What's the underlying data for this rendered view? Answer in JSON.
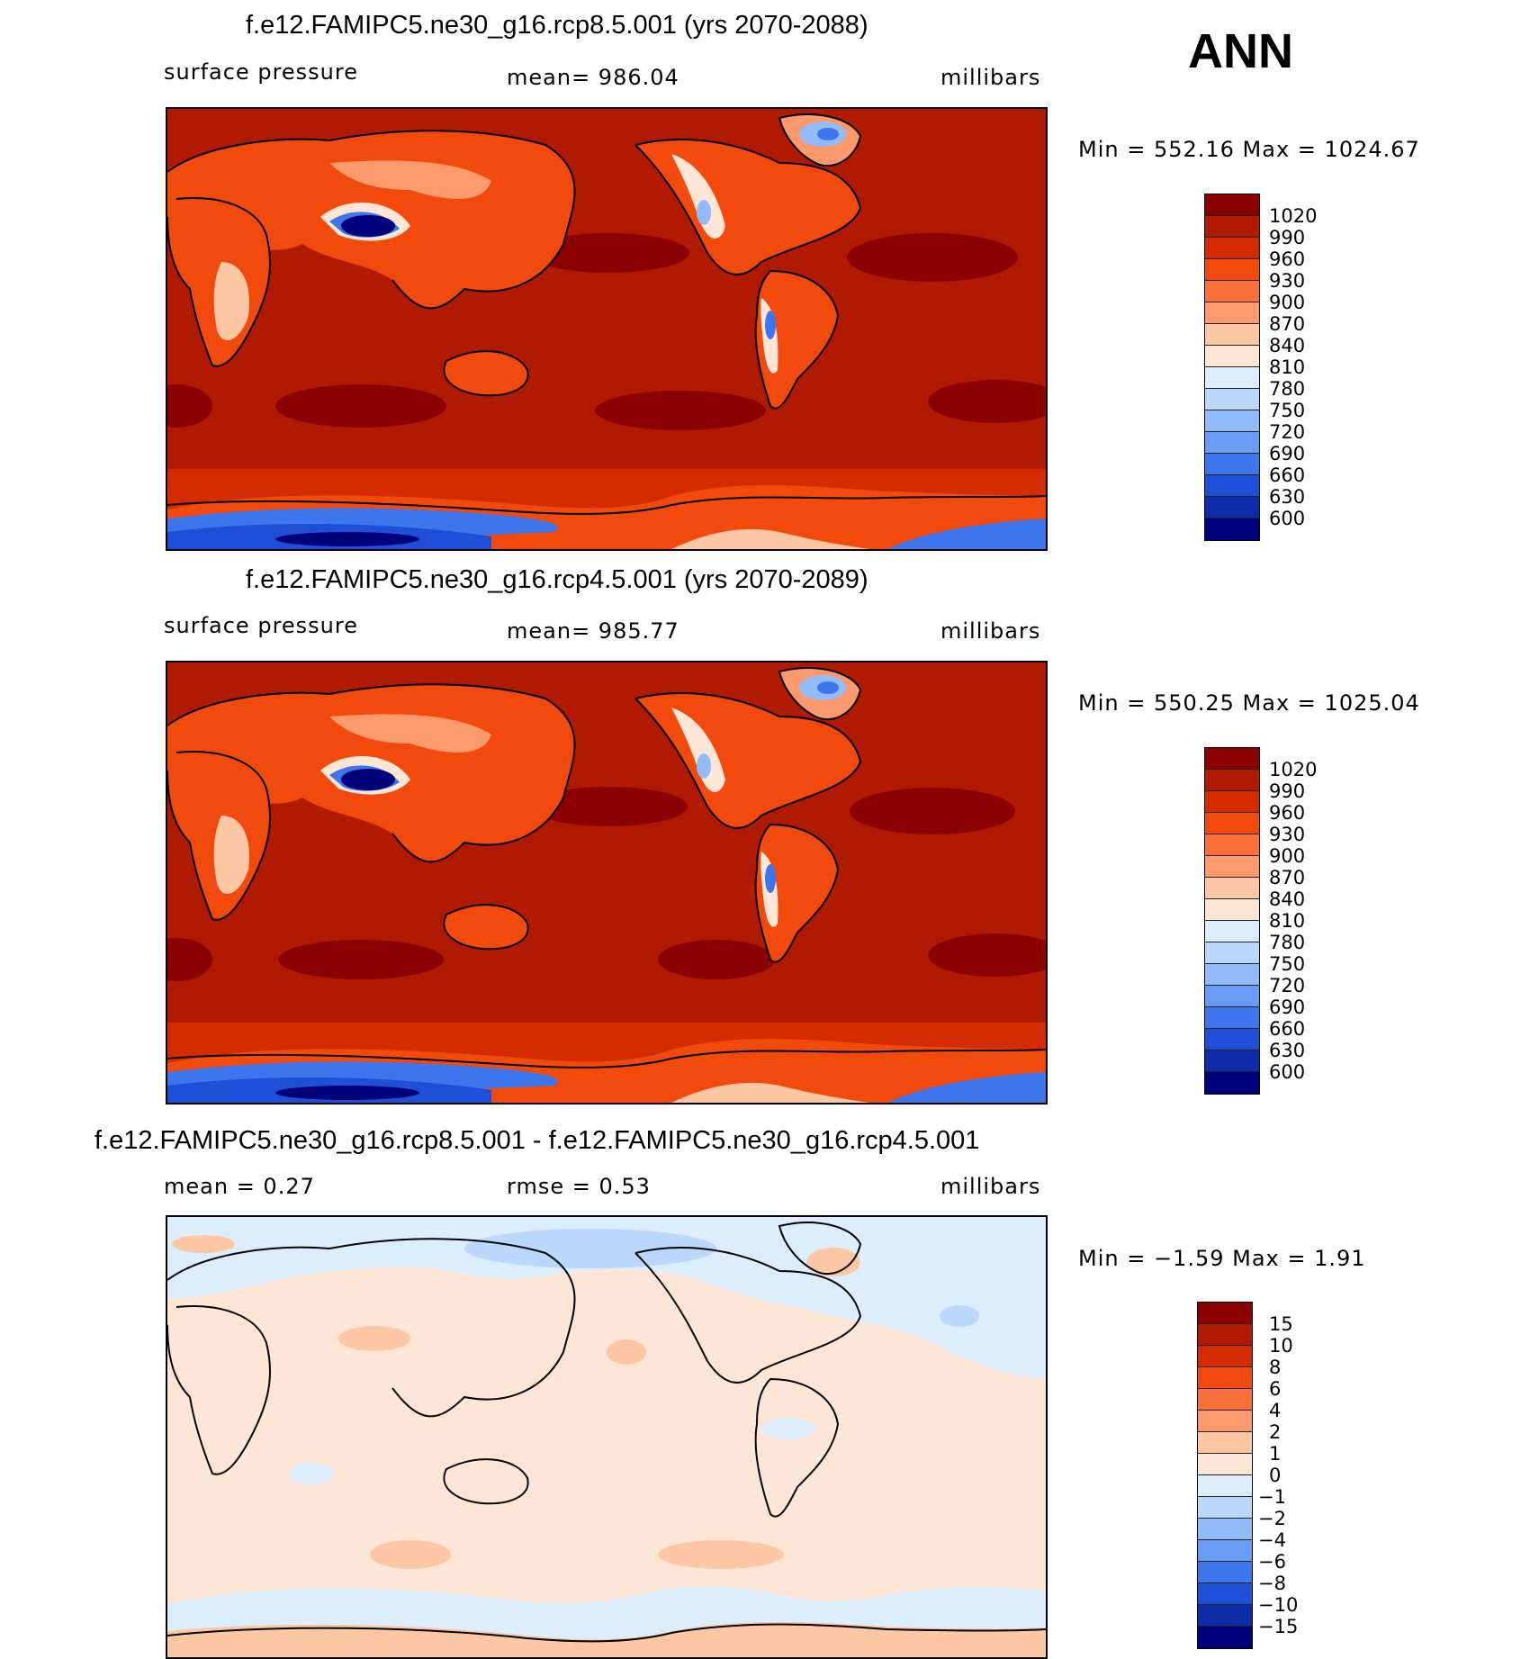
{
  "season": "ANN",
  "panels": [
    {
      "title": "f.e12.FAMIPC5.ne30_g16.rcp8.5.001 (yrs 2070-2088)",
      "left_label": "surface pressure",
      "mid_label": "mean=  986.04",
      "units": "millibars",
      "minmax": "Min  =  552.16  Max  =  1024.67"
    },
    {
      "title": "f.e12.FAMIPC5.ne30_g16.rcp4.5.001 (yrs 2070-2089)",
      "left_label": "surface pressure",
      "mid_label": "mean=  985.77",
      "units": "millibars",
      "minmax": "Min  =  550.25  Max  =  1025.04"
    },
    {
      "title": "f.e12.FAMIPC5.ne30_g16.rcp8.5.001 - f.e12.FAMIPC5.ne30_g16.rcp4.5.001",
      "left_label": "mean  =      0.27",
      "mid_label": "rmse  =      0.53",
      "units": "millibars",
      "minmax": "Min  =    −1.59  Max  =      1.91"
    }
  ],
  "chart_data": [
    {
      "type": "heatmap",
      "title": "f.e12.FAMIPC5.ne30_g16.rcp8.5.001 (yrs 2070-2088)",
      "variable": "surface pressure",
      "units": "millibars",
      "mean": 986.04,
      "min": 552.16,
      "max": 1024.67,
      "colorbar_levels": [
        "1020",
        "990",
        "960",
        "930",
        "900",
        "870",
        "840",
        "810",
        "780",
        "750",
        "720",
        "690",
        "660",
        "630",
        "600"
      ],
      "colorbar_colors": [
        "#8b0000",
        "#b01a00",
        "#d42c00",
        "#f24a0c",
        "#fa7038",
        "#fc9a6e",
        "#fdc7a4",
        "#fee6d6",
        "#dceefe",
        "#bcd7fc",
        "#92bbfa",
        "#6a9cf6",
        "#3d75ec",
        "#1e4fd6",
        "#0c2ca8",
        "#00007a"
      ]
    },
    {
      "type": "heatmap",
      "title": "f.e12.FAMIPC5.ne30_g16.rcp4.5.001 (yrs 2070-2089)",
      "variable": "surface pressure",
      "units": "millibars",
      "mean": 985.77,
      "min": 550.25,
      "max": 1025.04,
      "colorbar_levels": [
        "1020",
        "990",
        "960",
        "930",
        "900",
        "870",
        "840",
        "810",
        "780",
        "750",
        "720",
        "690",
        "660",
        "630",
        "600"
      ],
      "colorbar_colors": [
        "#8b0000",
        "#b01a00",
        "#d42c00",
        "#f24a0c",
        "#fa7038",
        "#fc9a6e",
        "#fdc7a4",
        "#fee6d6",
        "#dceefe",
        "#bcd7fc",
        "#92bbfa",
        "#6a9cf6",
        "#3d75ec",
        "#1e4fd6",
        "#0c2ca8",
        "#00007a"
      ]
    },
    {
      "type": "heatmap",
      "title": "f.e12.FAMIPC5.ne30_g16.rcp8.5.001 - f.e12.FAMIPC5.ne30_g16.rcp4.5.001",
      "units": "millibars",
      "mean": 0.27,
      "rmse": 0.53,
      "min": -1.59,
      "max": 1.91,
      "colorbar_levels": [
        "15",
        "10",
        "8",
        "6",
        "4",
        "2",
        "1",
        "0",
        "−1",
        "−2",
        "−4",
        "−6",
        "−8",
        "−10",
        "−15"
      ],
      "colorbar_colors": [
        "#8b0000",
        "#b01a00",
        "#d42c00",
        "#f24a0c",
        "#fa7038",
        "#fc9a6e",
        "#fdc7a4",
        "#fee6d6",
        "#dceefe",
        "#bcd7fc",
        "#92bbfa",
        "#6a9cf6",
        "#3d75ec",
        "#1e4fd6",
        "#0c2ca8",
        "#00007a"
      ]
    }
  ]
}
